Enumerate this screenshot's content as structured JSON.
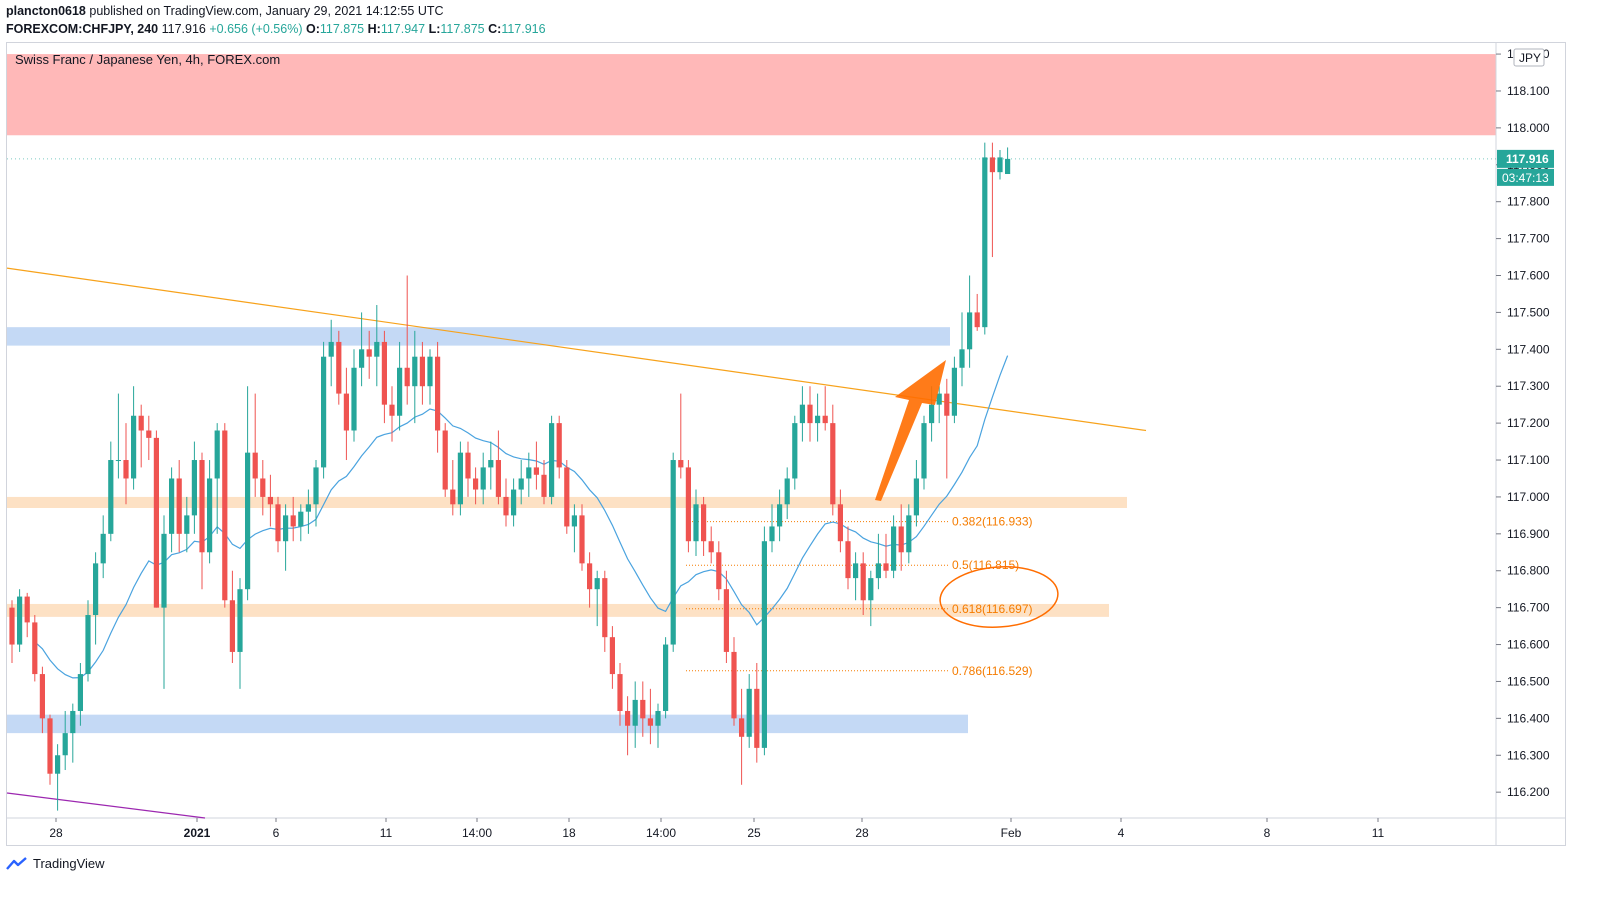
{
  "header": {
    "author": "plancton0618",
    "published_text": "published on TradingView.com, January 29, 2021 14:12:55 UTC",
    "symbol": "FOREXCOM:CHFJPY, 240",
    "last": "117.916",
    "change": "+0.656 (+0.56%)",
    "o_label": "O:",
    "o_val": "117.875",
    "h_label": "H:",
    "h_val": "117.947",
    "l_label": "L:",
    "l_val": "117.875",
    "c_label": "C:",
    "c_val": "117.916"
  },
  "chart_title": "Swiss Franc / Japanese Yen, 4h, FOREX.com",
  "footer": {
    "brand": "TradingView"
  },
  "chart_data": {
    "type": "candlestick",
    "currency_label": "JPY",
    "price_tag": "117.916",
    "countdown_tag": "03:47:13",
    "colors": {
      "up": "#26a69a",
      "down": "#ef5350",
      "ma": "#4aa3df",
      "trendline": "#f7a21b",
      "arrow": "#ff6d00",
      "resistance_zone": "#ffb8b8",
      "blue_zone": "#c4d9f5",
      "orange_zone": "#fde1c4",
      "fib": "#f57c00",
      "purple": "#9c27b0"
    },
    "y_axis": {
      "min": 116.13,
      "max": 118.23,
      "ticks": [
        "118.200",
        "118.100",
        "118.000",
        "117.900",
        "117.800",
        "117.700",
        "117.600",
        "117.500",
        "117.400",
        "117.300",
        "117.200",
        "117.100",
        "117.000",
        "116.900",
        "116.800",
        "116.700",
        "116.600",
        "116.500",
        "116.400",
        "116.300",
        "116.200"
      ]
    },
    "x_ticks": [
      "28",
      "2021",
      "6",
      "11",
      "14:00",
      "18",
      "14:00",
      "25",
      "28",
      "Feb",
      "4",
      "8",
      "11"
    ],
    "zones": [
      {
        "name": "resistance",
        "from": 117.98,
        "to": 118.2
      },
      {
        "name": "blue-upper",
        "from": 117.41,
        "to": 117.46
      },
      {
        "name": "orange-upper",
        "from": 116.97,
        "to": 117.0
      },
      {
        "name": "orange-lower",
        "from": 116.675,
        "to": 116.71
      },
      {
        "name": "blue-lower",
        "from": 116.36,
        "to": 116.41
      }
    ],
    "fib_levels": [
      {
        "label": "0.382(116.933)",
        "value": 116.933
      },
      {
        "label": "0.5(116.815)",
        "value": 116.815
      },
      {
        "label": "0.618(116.697)",
        "value": 116.697
      },
      {
        "label": "0.786(116.529)",
        "value": 116.529
      }
    ],
    "trendline": {
      "start": 117.62,
      "end": 117.18
    },
    "candles": [
      [
        116.7,
        116.72,
        116.55,
        116.6
      ],
      [
        116.6,
        116.75,
        116.58,
        116.73
      ],
      [
        116.73,
        116.74,
        116.62,
        116.66
      ],
      [
        116.66,
        116.68,
        116.5,
        116.52
      ],
      [
        116.52,
        116.54,
        116.36,
        116.4
      ],
      [
        116.4,
        116.41,
        116.22,
        116.25
      ],
      [
        116.25,
        116.33,
        116.15,
        116.3
      ],
      [
        116.3,
        116.42,
        116.26,
        116.36
      ],
      [
        116.36,
        116.44,
        116.28,
        116.42
      ],
      [
        116.42,
        116.55,
        116.38,
        116.52
      ],
      [
        116.52,
        116.72,
        116.5,
        116.68
      ],
      [
        116.68,
        116.85,
        116.6,
        116.82
      ],
      [
        116.82,
        116.95,
        116.78,
        116.9
      ],
      [
        116.9,
        117.15,
        116.88,
        117.1
      ],
      [
        117.1,
        117.28,
        117.05,
        117.1
      ],
      [
        117.1,
        117.2,
        116.98,
        117.05
      ],
      [
        117.05,
        117.3,
        117.02,
        117.22
      ],
      [
        117.22,
        117.25,
        117.08,
        117.18
      ],
      [
        117.18,
        117.22,
        117.1,
        117.16
      ],
      [
        117.16,
        117.18,
        116.7,
        116.7
      ],
      [
        116.7,
        116.95,
        116.48,
        116.9
      ],
      [
        116.9,
        117.08,
        116.85,
        117.05
      ],
      [
        117.05,
        117.1,
        116.85,
        116.9
      ],
      [
        116.9,
        117.0,
        116.85,
        116.95
      ],
      [
        116.95,
        117.15,
        116.9,
        117.1
      ],
      [
        117.1,
        117.12,
        116.75,
        116.85
      ],
      [
        116.85,
        117.1,
        116.82,
        117.05
      ],
      [
        117.05,
        117.2,
        116.9,
        117.18
      ],
      [
        117.18,
        117.2,
        116.7,
        116.72
      ],
      [
        116.72,
        116.8,
        116.55,
        116.58
      ],
      [
        116.58,
        116.78,
        116.48,
        116.75
      ],
      [
        116.75,
        117.3,
        116.72,
        117.12
      ],
      [
        117.12,
        117.28,
        117.0,
        117.05
      ],
      [
        117.05,
        117.1,
        116.95,
        117.0
      ],
      [
        117.0,
        117.06,
        116.92,
        116.98
      ],
      [
        116.98,
        117.0,
        116.85,
        116.88
      ],
      [
        116.88,
        116.98,
        116.8,
        116.95
      ],
      [
        116.95,
        117.0,
        116.88,
        116.92
      ],
      [
        116.92,
        116.98,
        116.88,
        116.96
      ],
      [
        116.96,
        117.02,
        116.9,
        116.98
      ],
      [
        116.98,
        117.1,
        116.92,
        117.08
      ],
      [
        117.08,
        117.42,
        117.05,
        117.38
      ],
      [
        117.38,
        117.48,
        117.3,
        117.42
      ],
      [
        117.42,
        117.45,
        117.25,
        117.28
      ],
      [
        117.28,
        117.35,
        117.1,
        117.18
      ],
      [
        117.18,
        117.4,
        117.15,
        117.35
      ],
      [
        117.35,
        117.5,
        117.3,
        117.4
      ],
      [
        117.4,
        117.45,
        117.32,
        117.38
      ],
      [
        117.38,
        117.52,
        117.3,
        117.42
      ],
      [
        117.42,
        117.45,
        117.2,
        117.25
      ],
      [
        117.25,
        117.3,
        117.15,
        117.22
      ],
      [
        117.22,
        117.42,
        117.18,
        117.35
      ],
      [
        117.35,
        117.6,
        117.25,
        117.3
      ],
      [
        117.3,
        117.45,
        117.2,
        117.38
      ],
      [
        117.38,
        117.42,
        117.25,
        117.3
      ],
      [
        117.3,
        117.4,
        117.25,
        117.38
      ],
      [
        117.38,
        117.42,
        117.12,
        117.18
      ],
      [
        117.18,
        117.2,
        117.0,
        117.02
      ],
      [
        117.02,
        117.1,
        116.95,
        116.98
      ],
      [
        116.98,
        117.15,
        116.95,
        117.12
      ],
      [
        117.12,
        117.15,
        117.0,
        117.05
      ],
      [
        117.05,
        117.08,
        116.98,
        117.02
      ],
      [
        117.02,
        117.12,
        116.98,
        117.08
      ],
      [
        117.08,
        117.15,
        117.02,
        117.1
      ],
      [
        117.1,
        117.18,
        116.98,
        117.0
      ],
      [
        117.0,
        117.05,
        116.92,
        116.95
      ],
      [
        116.95,
        117.05,
        116.92,
        117.02
      ],
      [
        117.02,
        117.1,
        116.98,
        117.05
      ],
      [
        117.05,
        117.12,
        117.0,
        117.08
      ],
      [
        117.08,
        117.15,
        117.02,
        117.06
      ],
      [
        117.06,
        117.1,
        116.98,
        117.0
      ],
      [
        117.0,
        117.22,
        116.98,
        117.2
      ],
      [
        117.2,
        117.22,
        117.05,
        117.08
      ],
      [
        117.08,
        117.1,
        116.9,
        116.92
      ],
      [
        116.92,
        116.98,
        116.85,
        116.95
      ],
      [
        116.95,
        116.98,
        116.8,
        116.82
      ],
      [
        116.82,
        116.85,
        116.7,
        116.75
      ],
      [
        116.75,
        116.8,
        116.65,
        116.78
      ],
      [
        116.78,
        116.8,
        116.58,
        116.62
      ],
      [
        116.62,
        116.65,
        116.48,
        116.52
      ],
      [
        116.52,
        116.55,
        116.38,
        116.42
      ],
      [
        116.42,
        116.46,
        116.3,
        116.38
      ],
      [
        116.38,
        116.5,
        116.32,
        116.45
      ],
      [
        116.45,
        116.5,
        116.35,
        116.4
      ],
      [
        116.4,
        116.48,
        116.33,
        116.38
      ],
      [
        116.38,
        116.44,
        116.32,
        116.42
      ],
      [
        116.42,
        116.62,
        116.4,
        116.6
      ],
      [
        116.6,
        117.12,
        116.58,
        117.1
      ],
      [
        117.1,
        117.28,
        117.05,
        117.08
      ],
      [
        117.08,
        117.1,
        116.85,
        116.88
      ],
      [
        116.88,
        117.02,
        116.84,
        116.98
      ],
      [
        116.98,
        117.0,
        116.84,
        116.88
      ],
      [
        116.88,
        116.92,
        116.82,
        116.85
      ],
      [
        116.85,
        116.88,
        116.72,
        116.75
      ],
      [
        116.75,
        116.8,
        116.55,
        116.58
      ],
      [
        116.58,
        116.62,
        116.38,
        116.4
      ],
      [
        116.4,
        116.48,
        116.22,
        116.35
      ],
      [
        116.35,
        116.52,
        116.32,
        116.48
      ],
      [
        116.48,
        116.55,
        116.28,
        116.32
      ],
      [
        116.32,
        116.92,
        116.3,
        116.88
      ],
      [
        116.88,
        116.98,
        116.85,
        116.92
      ],
      [
        116.92,
        117.02,
        116.88,
        116.98
      ],
      [
        116.98,
        117.08,
        116.94,
        117.05
      ],
      [
        117.05,
        117.22,
        117.02,
        117.2
      ],
      [
        117.2,
        117.3,
        117.15,
        117.25
      ],
      [
        117.25,
        117.3,
        117.15,
        117.2
      ],
      [
        117.2,
        117.28,
        117.15,
        117.22
      ],
      [
        117.22,
        117.3,
        117.18,
        117.2
      ],
      [
        117.2,
        117.25,
        116.95,
        116.98
      ],
      [
        116.98,
        117.02,
        116.85,
        116.88
      ],
      [
        116.88,
        116.92,
        116.75,
        116.78
      ],
      [
        116.78,
        116.85,
        116.72,
        116.82
      ],
      [
        116.82,
        116.85,
        116.68,
        116.72
      ],
      [
        116.72,
        116.8,
        116.65,
        116.78
      ],
      [
        116.78,
        116.9,
        116.75,
        116.82
      ],
      [
        116.82,
        116.9,
        116.78,
        116.8
      ],
      [
        116.8,
        116.95,
        116.78,
        116.92
      ],
      [
        116.92,
        116.98,
        116.8,
        116.85
      ],
      [
        116.85,
        116.98,
        116.82,
        116.95
      ],
      [
        116.95,
        117.1,
        116.92,
        117.05
      ],
      [
        117.05,
        117.22,
        117.02,
        117.2
      ],
      [
        117.2,
        117.3,
        117.15,
        117.25
      ],
      [
        117.25,
        117.3,
        117.2,
        117.28
      ],
      [
        117.28,
        117.32,
        117.05,
        117.22
      ],
      [
        117.22,
        117.38,
        117.2,
        117.35
      ],
      [
        117.35,
        117.5,
        117.3,
        117.4
      ],
      [
        117.4,
        117.6,
        117.35,
        117.5
      ],
      [
        117.5,
        117.55,
        117.45,
        117.46
      ],
      [
        117.46,
        117.96,
        117.44,
        117.92
      ],
      [
        117.92,
        117.96,
        117.65,
        117.88
      ],
      [
        117.88,
        117.94,
        117.86,
        117.92
      ],
      [
        117.875,
        117.947,
        117.875,
        117.916
      ]
    ]
  }
}
